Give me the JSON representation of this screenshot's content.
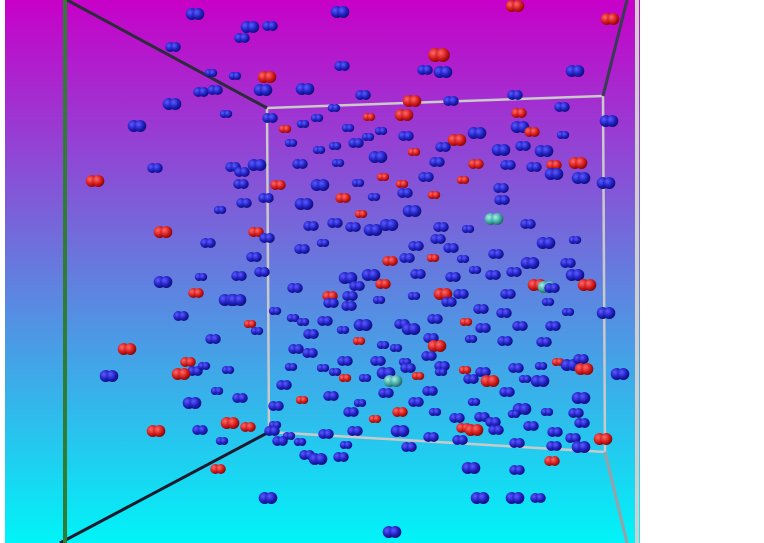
{
  "scene": {
    "background_gradient": [
      "#c800c8",
      "#00f4f8"
    ],
    "frame": {
      "near_face_colors": [
        "#2e7d32",
        "#1a1a2e",
        "#cfcfcf"
      ],
      "far_face_color": "#bdbdbd"
    },
    "particle_species": [
      {
        "id": "blue-dimer",
        "color": "#1f1fc0",
        "shade": "#0b0b6e"
      },
      {
        "id": "red-dimer",
        "color": "#d01818",
        "shade": "#7a0606"
      },
      {
        "id": "teal-dimer",
        "color": "#3fa7a0",
        "shade": "#1d5f5b"
      }
    ]
  }
}
